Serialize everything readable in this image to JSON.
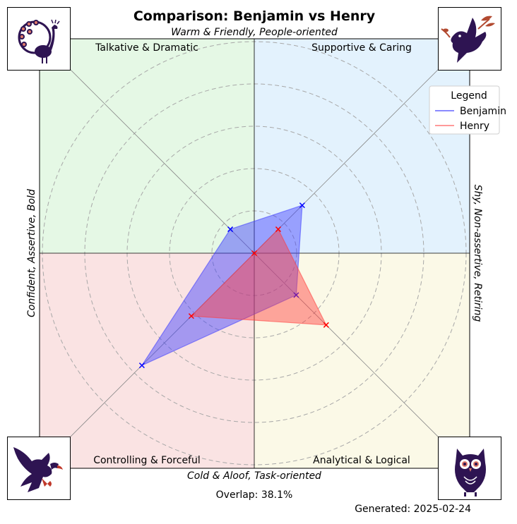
{
  "chart_data": {
    "type": "radar",
    "title": "Comparison: Benjamin vs Henry",
    "top_label": "Warm & Friendly, People-oriented",
    "bottom_label": "Cold & Aloof, Task-oriented",
    "left_label": "Confident, Assertive, Bold",
    "right_label": "Shy, Non-assertive, Retiring",
    "quadrants": [
      {
        "name": "Talkative & Dramatic",
        "position": "top-left",
        "color": "#e5f8e5"
      },
      {
        "name": "Supportive & Caring",
        "position": "top-right",
        "color": "#e3f2fd"
      },
      {
        "name": "Controlling & Forceful",
        "position": "bottom-left",
        "color": "#fae3e3"
      },
      {
        "name": "Analytical & Logical",
        "position": "bottom-right",
        "color": "#fbf9e7"
      }
    ],
    "axes": [
      "Supportive & Caring",
      "Analytical & Logical",
      "Controlling & Forceful",
      "Talkative & Dramatic"
    ],
    "rlim": [
      0,
      10
    ],
    "rings": [
      2,
      4,
      6,
      8,
      10
    ],
    "grid": true,
    "series": [
      {
        "name": "Benjamin",
        "color": "#0000ff",
        "fill": "#3b3bff",
        "values": [
          3.2,
          2.8,
          7.5,
          1.6
        ]
      },
      {
        "name": "Henry",
        "color": "#ff0000",
        "fill": "#ff3b3b",
        "values": [
          1.6,
          4.8,
          4.2,
          0.0
        ]
      }
    ],
    "legend": {
      "title": "Legend",
      "position": "top-right",
      "entries": [
        "Benjamin",
        "Henry"
      ]
    },
    "overlap_text": "Overlap: 38.1%",
    "generated_text": "Generated: 2025-02-24"
  },
  "icons": {
    "top_left": "peacock-icon",
    "top_right": "dove-icon",
    "bottom_left": "eagle-icon",
    "bottom_right": "owl-icon"
  }
}
